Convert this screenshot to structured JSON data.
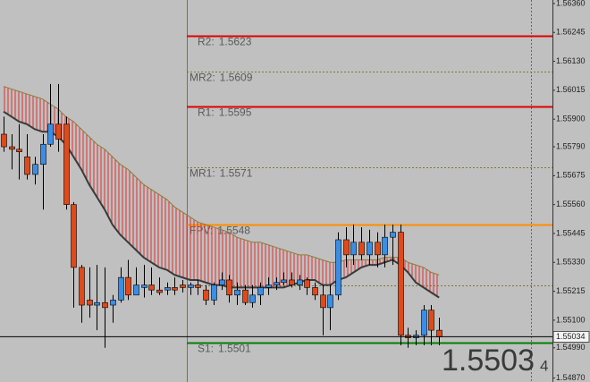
{
  "chart_data": {
    "type": "candlestick",
    "up_color": "#3a8ee6",
    "down_color": "#e04a1a",
    "open": [
      1.5584,
      1.5579,
      1.5578,
      1.5575,
      1.5568,
      1.5572,
      1.558,
      1.5588,
      1.5588,
      1.5556,
      1.5531,
      1.5518,
      1.5516,
      1.5517,
      1.5516,
      1.5518,
      1.5527,
      1.552,
      1.5523,
      1.5524,
      1.5522,
      1.5522,
      1.5523,
      1.5524,
      1.5523,
      1.5524,
      1.5522,
      1.5518,
      1.5524,
      1.5526,
      1.552,
      1.5522,
      1.5517,
      1.552,
      1.5523,
      1.5524,
      1.5525,
      1.5526,
      1.5524,
      1.5526,
      1.5523,
      1.552,
      1.5515,
      1.552,
      1.5542,
      1.5536,
      1.5541,
      1.5536,
      1.5541,
      1.5536,
      1.5543,
      1.5545,
      1.5504,
      1.5503,
      1.5504,
      1.5514,
      1.5506
    ],
    "high": [
      1.5591,
      1.5584,
      1.5588,
      1.5584,
      1.5575,
      1.5584,
      1.5604,
      1.5604,
      1.5591,
      1.5557,
      1.5532,
      1.5531,
      1.5532,
      1.5531,
      1.552,
      1.5531,
      1.5534,
      1.5531,
      1.5532,
      1.5531,
      1.5527,
      1.5525,
      1.5527,
      1.5526,
      1.5525,
      1.5526,
      1.5524,
      1.5525,
      1.5529,
      1.5528,
      1.5525,
      1.5524,
      1.5524,
      1.5525,
      1.5527,
      1.5527,
      1.5529,
      1.5529,
      1.5528,
      1.5527,
      1.5525,
      1.5524,
      1.5524,
      1.5545,
      1.5547,
      1.5548,
      1.5547,
      1.5546,
      1.5545,
      1.5548,
      1.5548,
      1.5548,
      1.5507,
      1.5506,
      1.5516,
      1.5516,
      1.5511
    ],
    "low": [
      1.5577,
      1.557,
      1.5566,
      1.5566,
      1.5564,
      1.5554,
      1.5579,
      1.5577,
      1.5554,
      1.5515,
      1.5509,
      1.5511,
      1.5506,
      1.5499,
      1.5509,
      1.5517,
      1.5518,
      1.552,
      1.5519,
      1.552,
      1.552,
      1.552,
      1.552,
      1.5521,
      1.552,
      1.552,
      1.5516,
      1.5516,
      1.5522,
      1.5517,
      1.5516,
      1.5516,
      1.5515,
      1.5516,
      1.552,
      1.5522,
      1.5524,
      1.5523,
      1.5522,
      1.552,
      1.5518,
      1.5504,
      1.5506,
      1.5518,
      1.5531,
      1.5532,
      1.5534,
      1.5532,
      1.5531,
      1.5531,
      1.5532,
      1.55,
      1.5499,
      1.55,
      1.55,
      1.55,
      1.55
    ],
    "close": [
      1.5579,
      1.5578,
      1.5577,
      1.5568,
      1.5572,
      1.558,
      1.5588,
      1.5582,
      1.5556,
      1.5531,
      1.5516,
      1.5516,
      1.5517,
      1.5515,
      1.5518,
      1.5527,
      1.552,
      1.5524,
      1.5524,
      1.5522,
      1.5521,
      1.5523,
      1.5522,
      1.5523,
      1.5524,
      1.5523,
      1.5518,
      1.5524,
      1.5526,
      1.552,
      1.5522,
      1.5517,
      1.552,
      1.5523,
      1.5524,
      1.5525,
      1.5526,
      1.5524,
      1.5526,
      1.5523,
      1.552,
      1.5515,
      1.552,
      1.5542,
      1.5536,
      1.5541,
      1.5536,
      1.5541,
      1.5536,
      1.5543,
      1.5545,
      1.5504,
      1.5503,
      1.5504,
      1.5514,
      1.5506,
      1.55034
    ],
    "lines": [
      {
        "color": "#8b7d3a",
        "values": [
          1.5603,
          1.5602,
          1.5601,
          1.56,
          1.5599,
          1.5598,
          1.5596,
          1.5594,
          1.5591,
          1.5589,
          1.5586,
          1.5583,
          1.558,
          1.5578,
          1.5575,
          1.5572,
          1.557,
          1.5567,
          1.5564,
          1.5562,
          1.556,
          1.5558,
          1.5555,
          1.5553,
          1.5551,
          1.5549,
          1.5548,
          1.5547,
          1.5546,
          1.5545,
          1.5543,
          1.5542,
          1.5541,
          1.5541,
          1.554,
          1.5539,
          1.5538,
          1.5537,
          1.5536,
          1.5536,
          1.5535,
          1.5534,
          1.5533,
          1.5533,
          1.5534,
          1.5534,
          1.5534,
          1.5534,
          1.5534,
          1.5535,
          1.5535,
          1.5535,
          1.5533,
          1.5532,
          1.5531,
          1.5529,
          1.5528
        ]
      },
      {
        "color": "#3a3a3a",
        "values": [
          1.5593,
          1.5591,
          1.5589,
          1.5588,
          1.5586,
          1.5585,
          1.5585,
          1.5583,
          1.558,
          1.5575,
          1.557,
          1.5564,
          1.5559,
          1.5554,
          1.5548,
          1.5544,
          1.5541,
          1.5538,
          1.5535,
          1.5533,
          1.5531,
          1.553,
          1.5528,
          1.5527,
          1.5526,
          1.5526,
          1.5525,
          1.5524,
          1.5524,
          1.5523,
          1.5523,
          1.5523,
          1.5523,
          1.5523,
          1.5523,
          1.5523,
          1.5523,
          1.5524,
          1.5525,
          1.5526,
          1.5526,
          1.5524,
          1.5524,
          1.5526,
          1.5527,
          1.5529,
          1.5531,
          1.5532,
          1.5532,
          1.5533,
          1.5534,
          1.5532,
          1.5529,
          1.5525,
          1.5523,
          1.5521,
          1.5519
        ]
      }
    ],
    "band_color": "#e03030",
    "levels": [
      {
        "name": "R2:",
        "value": 1.5623,
        "color": "#e00000",
        "dotted": false
      },
      {
        "name": "MR2:",
        "value": 1.5609,
        "color": "#7a7a30",
        "dotted": true
      },
      {
        "name": "R1:",
        "value": 1.5595,
        "color": "#e00000",
        "dotted": false
      },
      {
        "name": "MR1:",
        "value": 1.5571,
        "color": "#7a7a30",
        "dotted": true
      },
      {
        "name": "FPV:",
        "value": 1.5548,
        "color": "#ff8c00",
        "dotted": false
      },
      {
        "value": 1.5524,
        "color": "#7a7a30",
        "dotted": true
      },
      {
        "name": "S1:",
        "value": 1.5501,
        "color": "#008000",
        "dotted": false
      }
    ],
    "last_price": {
      "value": 1.55034,
      "label": "1.55034"
    },
    "price_big": "1.5503",
    "price_small": "4",
    "ylim": [
      1.54854,
      1.56374
    ],
    "yticks": [
      {
        "value": 1.5636,
        "label": "1.56360"
      },
      {
        "value": 1.56245,
        "label": "1.56245"
      },
      {
        "value": 1.5613,
        "label": "1.56130"
      },
      {
        "value": 1.56015,
        "label": "1.56015"
      },
      {
        "value": 1.559,
        "label": "1.55900"
      },
      {
        "value": 1.5579,
        "label": "1.55790"
      },
      {
        "value": 1.55675,
        "label": "1.55675"
      },
      {
        "value": 1.5556,
        "label": "1.55560"
      },
      {
        "value": 1.55445,
        "label": "1.55445"
      },
      {
        "value": 1.5533,
        "label": "1.55330"
      },
      {
        "value": 1.55215,
        "label": "1.55215"
      },
      {
        "value": 1.551,
        "label": "1.55100"
      },
      {
        "value": 1.5499,
        "label": "1.54990"
      },
      {
        "value": 1.5487,
        "label": "1.54870"
      }
    ]
  }
}
